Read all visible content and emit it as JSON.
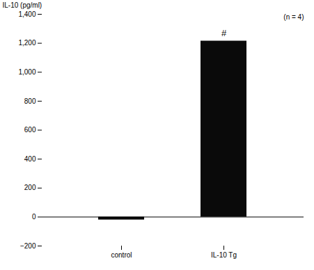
{
  "chart_data": {
    "type": "bar",
    "categories": [
      "control",
      "IL-10 Tg"
    ],
    "values": [
      -20,
      1215
    ],
    "color": "#0a0a0a",
    "ylabel": "IL-10 (pg/ml)",
    "ylim": [
      -200,
      1400
    ],
    "yticks": [
      -200,
      0,
      200,
      400,
      600,
      800,
      1000,
      1200,
      1400
    ],
    "grid": false,
    "annotations": [
      {
        "text": "#",
        "x": "IL-10 Tg",
        "y": 1240
      },
      {
        "text": "(n = 4)"
      }
    ]
  }
}
